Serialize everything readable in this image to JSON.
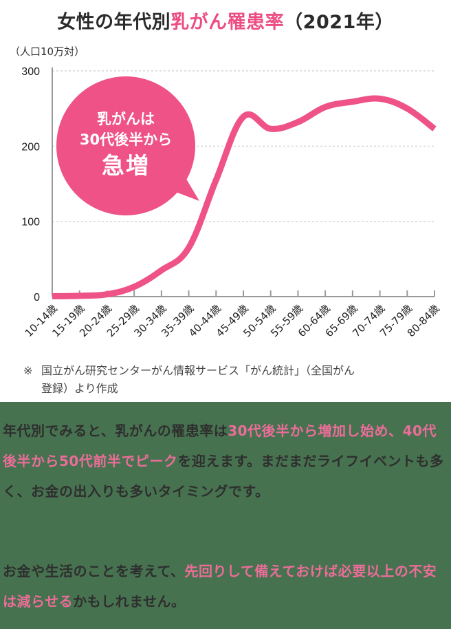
{
  "title": {
    "prefix": "女性の年代別",
    "highlight": "乳がん罹患率",
    "suffix": "（2021年）"
  },
  "unit_label": "（人口10万対）",
  "callout": {
    "line1": "乳がんは",
    "line2": "30代後半から",
    "line3": "急増"
  },
  "source_note": {
    "mark": "※",
    "line1": "国立がん研究センターがん情報サービス「がん統計」（全国がん",
    "line2": "登録）より作成"
  },
  "colors": {
    "accent": "#ec4d83",
    "line": "#ee5287",
    "bottom_bg": "#477250",
    "text": "#2e2e2e"
  },
  "paragraph1": {
    "s1": "年代別でみると、乳がんの罹患率は",
    "s2": "30代後半から増加し始め、40代後半から50代前半でピーク",
    "s3": "を迎えます。まだまだライフイベントも多く、お金の出入りも多いタイミングです。"
  },
  "paragraph2": {
    "s1": "お金や生活のことを考えて、",
    "s2": "先回りして備えておけば必要以上の不安は減らせる",
    "s3": "かもしれません。"
  },
  "chart_data": {
    "type": "line",
    "title": "女性の年代別乳がん罹患率（2021年）",
    "xlabel": "",
    "ylabel": "（人口10万対）",
    "ylim": [
      0,
      300
    ],
    "yticks": [
      0,
      100,
      200,
      300
    ],
    "grid": "horizontal dashed",
    "categories": [
      "10-14歳",
      "15-19歳",
      "20-24歳",
      "25-29歳",
      "30-34歳",
      "35-39歳",
      "40-44歳",
      "45-49歳",
      "50-54歳",
      "55-59歳",
      "60-64歳",
      "65-69歳",
      "70-74歳",
      "75-79歳",
      "80-84歳"
    ],
    "series": [
      {
        "name": "乳がん罹患率",
        "values": [
          0.5,
          1,
          3,
          13,
          35,
          65,
          155,
          239,
          223,
          232,
          252,
          259,
          263,
          250,
          223
        ]
      }
    ],
    "annotation": "乳がんは30代後半から急増"
  }
}
